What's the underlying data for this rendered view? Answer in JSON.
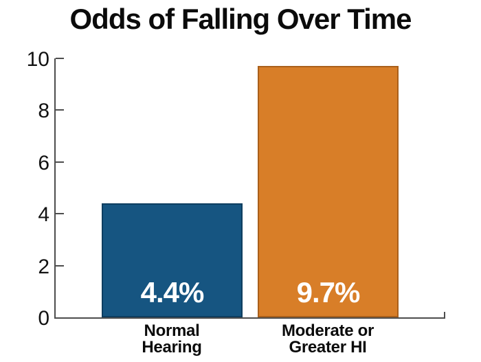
{
  "chart_data": {
    "type": "bar",
    "title": "Odds of Falling Over Time",
    "categories": [
      "Normal\nHearing",
      "Moderate or\nGreater HI"
    ],
    "values": [
      4.4,
      9.7
    ],
    "bar_labels": [
      "4.4%",
      "9.7%"
    ],
    "bar_colors": [
      "#165581",
      "#D87E28"
    ],
    "bar_border_colors": [
      "#0E3E60",
      "#A95F1A"
    ],
    "value_label_color": "#FFFFFF",
    "xlabel": "",
    "ylabel": "",
    "ylim": [
      0,
      10
    ],
    "yticks": [
      0,
      2,
      4,
      6,
      8,
      10
    ],
    "grid": false,
    "legend": false,
    "axis_color": "#4D4D4D",
    "text_color": "#121212"
  }
}
